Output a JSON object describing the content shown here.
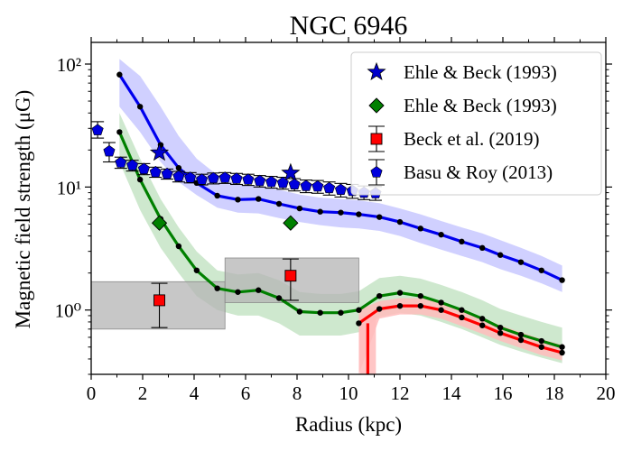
{
  "chart_data": {
    "type": "line",
    "title": "NGC 6946",
    "xlabel": "Radius (kpc)",
    "ylabel": "Magnetic field strength (μG)",
    "xlim": [
      0,
      20
    ],
    "ylim": [
      0.3,
      150
    ],
    "yscale": "log",
    "x_ticks": [
      0,
      2,
      4,
      6,
      8,
      10,
      12,
      14,
      16,
      18,
      20
    ],
    "x_tick_labels": [
      "0",
      "2",
      "4",
      "6",
      "8",
      "10",
      "12",
      "14",
      "16",
      "18",
      "20"
    ],
    "y_ticks": [
      1,
      10,
      100
    ],
    "y_tick_labels": [
      "10⁰",
      "10¹",
      "10²"
    ],
    "legend_position": "top-right",
    "colors": {
      "blue": "#0000ee",
      "blue_band": "#c8c8ff",
      "green": "#008000",
      "green_band": "#c6e4c6",
      "red": "#ff0000",
      "red_band": "#ffbcbc",
      "box": "#b4b4b4",
      "square": "#ff0000",
      "diamond": "#008000",
      "star": "#0000cc",
      "pentagon": "#0000dd"
    },
    "legend": [
      {
        "label": "Ehle & Beck (1993)",
        "marker": "star"
      },
      {
        "label": "Ehle & Beck (1993)",
        "marker": "diamond"
      },
      {
        "label": "Beck et al. (2019)",
        "marker": "square"
      },
      {
        "label": "Basu & Roy (2013)",
        "marker": "pentagon"
      }
    ],
    "curves": [
      {
        "color": "blue",
        "x": [
          1.1,
          1.9,
          2.7,
          3.4,
          4.1,
          4.9,
          5.7,
          6.5,
          7.3,
          8.1,
          8.9,
          9.7,
          10.4,
          11.2,
          12.0,
          12.8,
          13.6,
          14.4,
          15.2,
          15.9,
          16.7,
          17.5,
          18.3
        ],
        "y": [
          82,
          45,
          22,
          14.3,
          10.8,
          8.5,
          7.9,
          8.0,
          7.3,
          6.7,
          6.3,
          6.2,
          6.0,
          5.7,
          5.2,
          4.6,
          4.1,
          3.6,
          3.2,
          2.8,
          2.45,
          2.1,
          1.75
        ],
        "band_lower": [
          45,
          28,
          16,
          11,
          8.6,
          6.8,
          6.2,
          6.1,
          5.6,
          5.2,
          4.9,
          4.7,
          4.6,
          4.4,
          4.0,
          3.5,
          3.1,
          2.75,
          2.45,
          2.15,
          1.9,
          1.65,
          1.4
        ],
        "band_upper": [
          110,
          80,
          45,
          26,
          17,
          12.5,
          10.5,
          10.3,
          9.5,
          8.7,
          8.2,
          8.0,
          7.8,
          7.4,
          6.7,
          6.0,
          5.3,
          4.7,
          4.2,
          3.7,
          3.2,
          2.75,
          2.3
        ]
      },
      {
        "color": "green",
        "x": [
          1.1,
          1.9,
          2.7,
          3.4,
          4.1,
          4.9,
          5.7,
          6.5,
          7.3,
          8.1,
          8.9,
          9.7,
          10.4,
          11.2,
          12.0,
          12.8,
          13.6,
          14.4,
          15.2,
          15.9,
          16.7,
          17.5,
          18.3
        ],
        "y": [
          28,
          11.5,
          5.5,
          3.3,
          2.1,
          1.5,
          1.4,
          1.45,
          1.25,
          0.97,
          0.95,
          0.95,
          1.0,
          1.3,
          1.38,
          1.3,
          1.15,
          1.0,
          0.85,
          0.72,
          0.63,
          0.56,
          0.5
        ],
        "band_lower": [
          16,
          6.5,
          3.2,
          2.0,
          1.3,
          1.0,
          0.9,
          0.9,
          0.78,
          0.62,
          0.62,
          0.62,
          0.66,
          0.88,
          0.95,
          0.9,
          0.8,
          0.7,
          0.6,
          0.52,
          0.46,
          0.41,
          0.37
        ],
        "band_upper": [
          40,
          17,
          8.0,
          4.7,
          3.0,
          2.1,
          1.95,
          2.0,
          1.75,
          1.4,
          1.35,
          1.35,
          1.42,
          1.82,
          1.9,
          1.8,
          1.6,
          1.4,
          1.2,
          1.02,
          0.9,
          0.8,
          0.72
        ]
      },
      {
        "color": "red",
        "x": [
          10.4,
          11.2,
          12.0,
          12.8,
          13.6,
          14.4,
          15.2,
          15.9,
          16.7,
          17.5,
          18.3
        ],
        "y": [
          0.78,
          1.02,
          1.08,
          1.08,
          1.0,
          0.87,
          0.75,
          0.65,
          0.57,
          0.5,
          0.45
        ],
        "band_lower": [
          0.3,
          0.85,
          0.92,
          0.92,
          0.85,
          0.74,
          0.64,
          0.56,
          0.49,
          0.43,
          0.39
        ],
        "band_upper": [
          1.0,
          1.18,
          1.25,
          1.25,
          1.16,
          1.01,
          0.87,
          0.75,
          0.66,
          0.58,
          0.52
        ],
        "vertical_band": {
          "x": 10.75,
          "y_low": 0.3,
          "y_high": 0.9
        }
      }
    ],
    "boxes": [
      {
        "x0": 0,
        "x1": 5.2,
        "y0": 0.7,
        "y1": 1.7
      },
      {
        "x0": 5.2,
        "x1": 10.4,
        "y0": 1.15,
        "y1": 2.65
      }
    ],
    "series": [
      {
        "name": "Ehle & Beck (1993)",
        "marker": "star",
        "x": [
          2.65,
          7.75
        ],
        "y": [
          19,
          13
        ]
      },
      {
        "name": "Ehle & Beck (1993)",
        "marker": "diamond",
        "x": [
          2.65,
          7.75
        ],
        "y": [
          5.1,
          5.1
        ]
      },
      {
        "name": "Beck et al. (2019)",
        "marker": "square",
        "x": [
          2.65,
          7.75
        ],
        "y": [
          1.2,
          1.9
        ],
        "y_err_low": [
          0.72,
          1.2
        ],
        "y_err_high": [
          1.65,
          2.6
        ]
      },
      {
        "name": "Basu & Roy (2013)",
        "marker": "pentagon",
        "x": [
          0.25,
          0.7,
          1.15,
          1.6,
          2.05,
          2.5,
          2.95,
          3.4,
          3.85,
          4.3,
          4.75,
          5.2,
          5.65,
          6.1,
          6.55,
          7.0,
          7.45,
          7.9,
          8.35,
          8.8,
          9.25,
          9.7,
          10.15,
          10.6,
          11.05
        ],
        "y": [
          29,
          19.5,
          15.8,
          15.0,
          14.0,
          13.2,
          12.8,
          12.2,
          11.9,
          11.5,
          11.8,
          11.9,
          11.7,
          11.5,
          11.2,
          11.0,
          10.8,
          10.5,
          10.2,
          10.1,
          9.8,
          9.5,
          9.3,
          9.0,
          8.9
        ],
        "y_err_low": [
          25,
          16,
          14.2,
          13.5,
          12.6,
          12.0,
          11.6,
          11.0,
          10.8,
          10.4,
          10.6,
          10.7,
          10.5,
          10.3,
          10.0,
          9.8,
          9.6,
          9.3,
          9.0,
          8.9,
          8.6,
          8.3,
          8.1,
          7.9,
          7.8
        ],
        "y_err_high": [
          34,
          23,
          17.5,
          16.5,
          15.5,
          14.5,
          14.0,
          13.4,
          13.1,
          12.7,
          13.0,
          13.1,
          12.9,
          12.7,
          12.4,
          12.2,
          12.0,
          11.7,
          11.4,
          11.3,
          11.0,
          10.7,
          10.5,
          10.2,
          10.1
        ]
      }
    ]
  }
}
